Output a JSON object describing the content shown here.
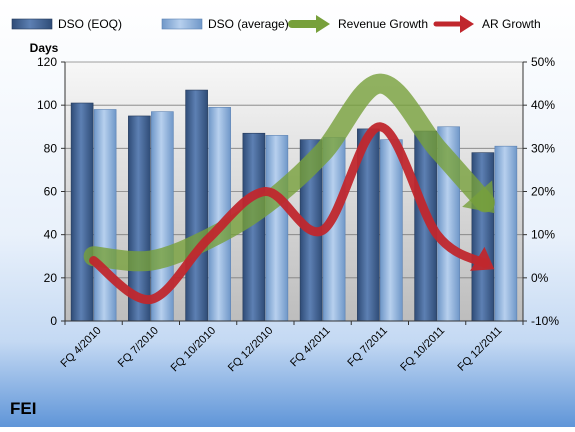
{
  "chart_data": {
    "type": "bar",
    "company_label": "FEI",
    "y_left_label": "Days",
    "categories": [
      "FQ 4/2010",
      "FQ 7/2010",
      "FQ 10/2010",
      "FQ 12/2010",
      "FQ 4/2011",
      "FQ 7/2011",
      "FQ 10/2011",
      "FQ 12/2011"
    ],
    "series": [
      {
        "name": "DSO (EOQ)",
        "axis": "left",
        "kind": "bar",
        "color": "#3f5f8f",
        "values": [
          101,
          95,
          107,
          87,
          84,
          89,
          88,
          78
        ]
      },
      {
        "name": "DSO (average)",
        "axis": "left",
        "kind": "bar",
        "color": "#8db0d9",
        "values": [
          98,
          97,
          99,
          86,
          85,
          84,
          90,
          81
        ]
      },
      {
        "name": "Revenue Growth",
        "axis": "right",
        "kind": "line",
        "color": "#77a03b",
        "values": [
          5,
          4,
          9,
          17,
          29,
          45,
          30,
          15
        ]
      },
      {
        "name": "AR Growth",
        "axis": "right",
        "kind": "line",
        "color": "#c0272d",
        "values": [
          4,
          -5,
          9,
          20,
          11,
          35,
          10,
          2
        ]
      }
    ],
    "y_left": {
      "min": 0,
      "max": 120,
      "ticks": [
        "0",
        "20",
        "40",
        "60",
        "80",
        "100",
        "120"
      ]
    },
    "y_right": {
      "min": -10,
      "max": 50,
      "ticks": [
        "-10%",
        "0%",
        "10%",
        "20%",
        "30%",
        "40%",
        "50%"
      ]
    },
    "grid": true,
    "legend_position": "top"
  }
}
